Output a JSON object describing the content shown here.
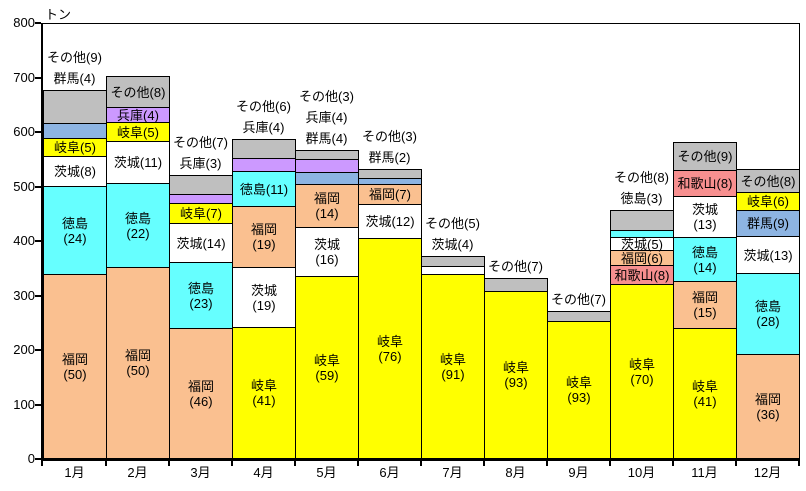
{
  "chart_data": {
    "type": "bar",
    "stacked": true,
    "title": "",
    "ylabel": "トン",
    "xlabel": "",
    "ylim": [
      0,
      800
    ],
    "yticks": [
      0,
      100,
      200,
      300,
      400,
      500,
      600,
      700,
      800
    ],
    "grid": false,
    "legend": "none (labels are drawn on or above each segment)",
    "values_in_parentheses": "percent share of the monthly total",
    "categories": [
      "1月",
      "2月",
      "3月",
      "4月",
      "5月",
      "6月",
      "7月",
      "8月",
      "9月",
      "10月",
      "11月",
      "12月"
    ],
    "colors": {
      "福岡": "#FAC090",
      "徳島": "#66FFFF",
      "茨城": "#FFFFFF",
      "岐阜": "#FFFF00",
      "群馬": "#8DB4E2",
      "兵庫": "#CC99FF",
      "和歌山": "#F78F8F",
      "その他": "#BFBFBF"
    },
    "months": [
      {
        "month": "1月",
        "total_tons": 675,
        "segments": [
          {
            "name": "福岡",
            "pct": 50,
            "label": "福岡\n(50)",
            "label_pos": "inside"
          },
          {
            "name": "徳島",
            "pct": 24,
            "label": "徳島\n(24)",
            "label_pos": "inside"
          },
          {
            "name": "茨城",
            "pct": 8,
            "label": "茨城(8)",
            "label_pos": "inside"
          },
          {
            "name": "岐阜",
            "pct": 5,
            "label": "岐阜(5)",
            "label_pos": "inside"
          },
          {
            "name": "群馬",
            "pct": 4,
            "label": "群馬(4)",
            "label_pos": "outside"
          },
          {
            "name": "その他",
            "pct": 9,
            "label": "その他(9)",
            "label_pos": "outside"
          }
        ]
      },
      {
        "month": "2月",
        "total_tons": 700,
        "segments": [
          {
            "name": "福岡",
            "pct": 50,
            "label": "福岡\n(50)",
            "label_pos": "inside"
          },
          {
            "name": "徳島",
            "pct": 22,
            "label": "徳島\n(22)",
            "label_pos": "inside"
          },
          {
            "name": "茨城",
            "pct": 11,
            "label": "茨城(11)",
            "label_pos": "inside"
          },
          {
            "name": "岐阜",
            "pct": 5,
            "label": "岐阜(5)",
            "label_pos": "inside"
          },
          {
            "name": "兵庫",
            "pct": 4,
            "label": "兵庫(4)",
            "label_pos": "inside"
          },
          {
            "name": "その他",
            "pct": 8,
            "label": "その他(8)",
            "label_pos": "inside"
          }
        ]
      },
      {
        "month": "3月",
        "total_tons": 520,
        "segments": [
          {
            "name": "福岡",
            "pct": 46,
            "label": "福岡\n(46)",
            "label_pos": "inside"
          },
          {
            "name": "徳島",
            "pct": 23,
            "label": "徳島\n(23)",
            "label_pos": "inside"
          },
          {
            "name": "茨城",
            "pct": 14,
            "label": "茨城(14)",
            "label_pos": "inside"
          },
          {
            "name": "岐阜",
            "pct": 7,
            "label": "岐阜(7)",
            "label_pos": "inside"
          },
          {
            "name": "兵庫",
            "pct": 3,
            "label": "兵庫(3)",
            "label_pos": "outside"
          },
          {
            "name": "その他",
            "pct": 7,
            "label": "その他(7)",
            "label_pos": "outside"
          }
        ]
      },
      {
        "month": "4月",
        "total_tons": 585,
        "segments": [
          {
            "name": "岐阜",
            "pct": 41,
            "label": "岐阜\n(41)",
            "label_pos": "inside"
          },
          {
            "name": "茨城",
            "pct": 19,
            "label": "茨城\n(19)",
            "label_pos": "inside"
          },
          {
            "name": "福岡",
            "pct": 19,
            "label": "福岡\n(19)",
            "label_pos": "inside"
          },
          {
            "name": "徳島",
            "pct": 11,
            "label": "徳島(11)",
            "label_pos": "inside"
          },
          {
            "name": "兵庫",
            "pct": 4,
            "label": "兵庫(4)",
            "label_pos": "outside"
          },
          {
            "name": "その他",
            "pct": 6,
            "label": "その他(6)",
            "label_pos": "outside"
          }
        ]
      },
      {
        "month": "5月",
        "total_tons": 565,
        "segments": [
          {
            "name": "岐阜",
            "pct": 59,
            "label": "岐阜\n(59)",
            "label_pos": "inside"
          },
          {
            "name": "茨城",
            "pct": 16,
            "label": "茨城\n(16)",
            "label_pos": "inside"
          },
          {
            "name": "福岡",
            "pct": 14,
            "label": "福岡\n(14)",
            "label_pos": "inside"
          },
          {
            "name": "群馬",
            "pct": 4,
            "label": "群馬(4)",
            "label_pos": "outside"
          },
          {
            "name": "兵庫",
            "pct": 4,
            "label": "兵庫(4)",
            "label_pos": "outside"
          },
          {
            "name": "その他",
            "pct": 3,
            "label": "その他(3)",
            "label_pos": "outside"
          }
        ]
      },
      {
        "month": "6月",
        "total_tons": 530,
        "segments": [
          {
            "name": "岐阜",
            "pct": 76,
            "label": "岐阜\n(76)",
            "label_pos": "inside"
          },
          {
            "name": "茨城",
            "pct": 12,
            "label": "茨城(12)",
            "label_pos": "inside"
          },
          {
            "name": "福岡",
            "pct": 7,
            "label": "福岡(7)",
            "label_pos": "inside"
          },
          {
            "name": "群馬",
            "pct": 2,
            "label": "群馬(2)",
            "label_pos": "outside"
          },
          {
            "name": "その他",
            "pct": 3,
            "label": "その他(3)",
            "label_pos": "outside"
          }
        ]
      },
      {
        "month": "7月",
        "total_tons": 370,
        "segments": [
          {
            "name": "岐阜",
            "pct": 91,
            "label": "岐阜\n(91)",
            "label_pos": "inside"
          },
          {
            "name": "茨城",
            "pct": 4,
            "label": "茨城(4)",
            "label_pos": "outside"
          },
          {
            "name": "その他",
            "pct": 5,
            "label": "その他(5)",
            "label_pos": "outside"
          }
        ]
      },
      {
        "month": "8月",
        "total_tons": 330,
        "segments": [
          {
            "name": "岐阜",
            "pct": 93,
            "label": "岐阜\n(93)",
            "label_pos": "inside"
          },
          {
            "name": "その他",
            "pct": 7,
            "label": "その他(7)",
            "label_pos": "outside"
          }
        ]
      },
      {
        "month": "9月",
        "total_tons": 270,
        "segments": [
          {
            "name": "岐阜",
            "pct": 93,
            "label": "岐阜\n(93)",
            "label_pos": "inside"
          },
          {
            "name": "その他",
            "pct": 7,
            "label": "その他(7)",
            "label_pos": "outside"
          }
        ]
      },
      {
        "month": "10月",
        "total_tons": 455,
        "segments": [
          {
            "name": "岐阜",
            "pct": 70,
            "label": "岐阜\n(70)",
            "label_pos": "inside"
          },
          {
            "name": "和歌山",
            "pct": 8,
            "label": "和歌山(8)",
            "label_pos": "inside"
          },
          {
            "name": "福岡",
            "pct": 6,
            "label": "福岡(6)",
            "label_pos": "inside"
          },
          {
            "name": "茨城",
            "pct": 5,
            "label": "茨城(5)",
            "label_pos": "inside"
          },
          {
            "name": "徳島",
            "pct": 3,
            "label": "徳島(3)",
            "label_pos": "outside"
          },
          {
            "name": "その他",
            "pct": 8,
            "label": "その他(8)",
            "label_pos": "outside"
          }
        ]
      },
      {
        "month": "11月",
        "total_tons": 580,
        "segments": [
          {
            "name": "岐阜",
            "pct": 41,
            "label": "岐阜\n(41)",
            "label_pos": "inside"
          },
          {
            "name": "福岡",
            "pct": 15,
            "label": "福岡\n(15)",
            "label_pos": "inside"
          },
          {
            "name": "徳島",
            "pct": 14,
            "label": "徳島\n(14)",
            "label_pos": "inside"
          },
          {
            "name": "茨城",
            "pct": 13,
            "label": "茨城\n(13)",
            "label_pos": "inside"
          },
          {
            "name": "和歌山",
            "pct": 8,
            "label": "和歌山(8)",
            "label_pos": "inside"
          },
          {
            "name": "その他",
            "pct": 9,
            "label": "その他(9)",
            "label_pos": "inside"
          }
        ]
      },
      {
        "month": "12月",
        "total_tons": 530,
        "segments": [
          {
            "name": "福岡",
            "pct": 36,
            "label": "福岡\n(36)",
            "label_pos": "inside"
          },
          {
            "name": "徳島",
            "pct": 28,
            "label": "徳島\n(28)",
            "label_pos": "inside"
          },
          {
            "name": "茨城",
            "pct": 13,
            "label": "茨城(13)",
            "label_pos": "inside"
          },
          {
            "name": "群馬",
            "pct": 9,
            "label": "群馬(9)",
            "label_pos": "inside"
          },
          {
            "name": "岐阜",
            "pct": 6,
            "label": "岐阜(6)",
            "label_pos": "inside"
          },
          {
            "name": "その他",
            "pct": 8,
            "label": "その他(8)",
            "label_pos": "inside"
          }
        ]
      }
    ]
  }
}
